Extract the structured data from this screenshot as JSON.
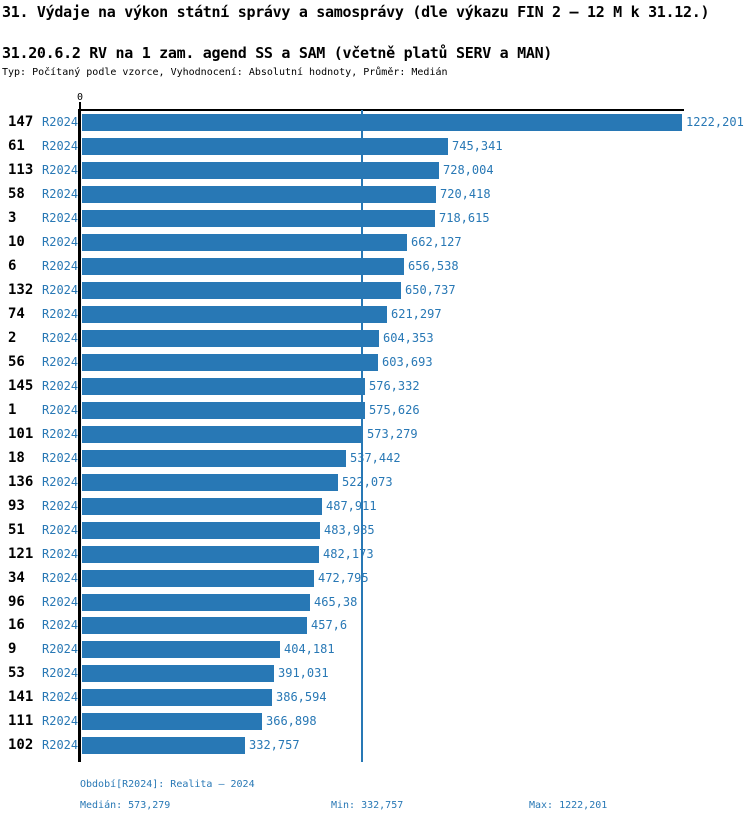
{
  "title": "31. Výdaje na výkon státní správy a samosprávy (dle výkazu FIN 2 – 12 M k 31.12.)",
  "subtitle": "31.20.6.2 RV na 1 zam. agend SS a SAM (včetně platů SERV a MAN)",
  "meta": "Typ: Počítaný podle vzorce, Vyhodnocení: Absolutní hodnoty, Průměr: Medián",
  "axis": {
    "origin_label": "0"
  },
  "colors": {
    "bar": "#2878b5",
    "label_text": "#2878b5",
    "axis": "#000000"
  },
  "chart_data": {
    "type": "bar",
    "orientation": "horizontal",
    "series_label": "R2024",
    "categories": [
      "147",
      "61",
      "113",
      "58",
      "3",
      "10",
      "6",
      "132",
      "74",
      "2",
      "56",
      "145",
      "1",
      "101",
      "18",
      "136",
      "93",
      "51",
      "121",
      "34",
      "96",
      "16",
      "9",
      "53",
      "141",
      "111",
      "102"
    ],
    "values": [
      1222.201,
      745.341,
      728.004,
      720.418,
      718.615,
      662.127,
      656.538,
      650.737,
      621.297,
      604.353,
      603.693,
      576.332,
      575.626,
      573.279,
      537.442,
      522.073,
      487.911,
      483.985,
      482.173,
      472.795,
      465.38,
      457.6,
      404.181,
      391.031,
      386.594,
      366.898,
      332.757
    ],
    "value_labels": [
      "1222,201",
      "745,341",
      "728,004",
      "720,418",
      "718,615",
      "662,127",
      "656,538",
      "650,737",
      "621,297",
      "604,353",
      "603,693",
      "576,332",
      "575,626",
      "573,279",
      "537,442",
      "522,073",
      "487,911",
      "483,985",
      "482,173",
      "472,795",
      "465,38",
      "457,6",
      "404,181",
      "391,031",
      "386,594",
      "366,898",
      "332,757"
    ],
    "xlim": [
      0,
      1222.201
    ],
    "median": 573.279,
    "median_line": true,
    "grid": false,
    "legend": false
  },
  "footer": {
    "period": "Období[R2024]: Realita – 2024",
    "median": "Medián: 573,279",
    "min": "Min: 332,757",
    "max": "Max: 1222,201"
  }
}
